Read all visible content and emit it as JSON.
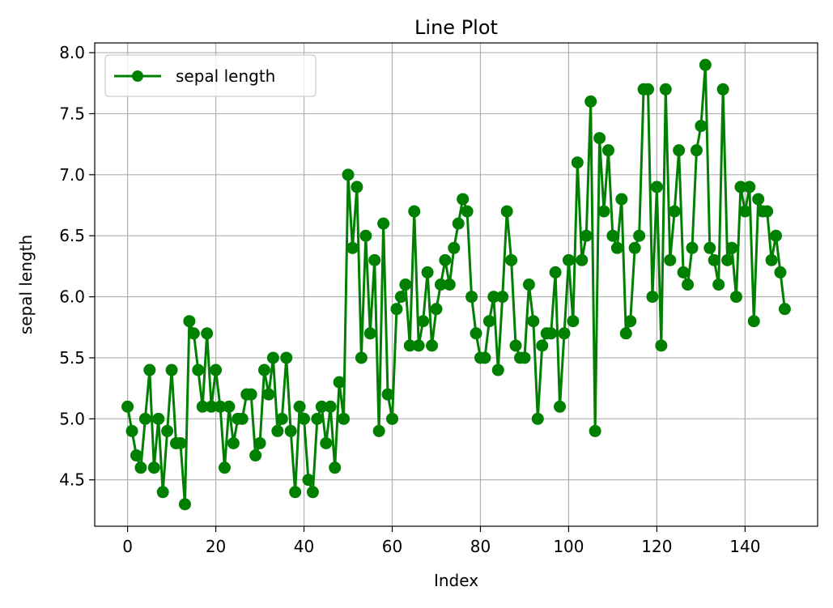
{
  "chart_data": {
    "type": "line",
    "title": "Line Plot",
    "xlabel": "Index",
    "ylabel": "sepal length",
    "xlim": [
      -7.45,
      156.45
    ],
    "ylim": [
      4.12,
      8.08
    ],
    "xticks": [
      0,
      20,
      40,
      60,
      80,
      100,
      120,
      140
    ],
    "yticks": [
      4.5,
      5.0,
      5.5,
      6.0,
      6.5,
      7.0,
      7.5,
      8.0
    ],
    "ytick_labels": [
      "4.5",
      "5.0",
      "5.5",
      "6.0",
      "6.5",
      "7.0",
      "7.5",
      "8.0"
    ],
    "grid": true,
    "legend": {
      "position": "upper-left"
    },
    "series": [
      {
        "name": "sepal length",
        "color": "#008000",
        "marker": "circle",
        "values": [
          5.1,
          4.9,
          4.7,
          4.6,
          5.0,
          5.4,
          4.6,
          5.0,
          4.4,
          4.9,
          5.4,
          4.8,
          4.8,
          4.3,
          5.8,
          5.7,
          5.4,
          5.1,
          5.7,
          5.1,
          5.4,
          5.1,
          4.6,
          5.1,
          4.8,
          5.0,
          5.0,
          5.2,
          5.2,
          4.7,
          4.8,
          5.4,
          5.2,
          5.5,
          4.9,
          5.0,
          5.5,
          4.9,
          4.4,
          5.1,
          5.0,
          4.5,
          4.4,
          5.0,
          5.1,
          4.8,
          5.1,
          4.6,
          5.3,
          5.0,
          7.0,
          6.4,
          6.9,
          5.5,
          6.5,
          5.7,
          6.3,
          4.9,
          6.6,
          5.2,
          5.0,
          5.9,
          6.0,
          6.1,
          5.6,
          6.7,
          5.6,
          5.8,
          6.2,
          5.6,
          5.9,
          6.1,
          6.3,
          6.1,
          6.4,
          6.6,
          6.8,
          6.7,
          6.0,
          5.7,
          5.5,
          5.5,
          5.8,
          6.0,
          5.4,
          6.0,
          6.7,
          6.3,
          5.6,
          5.5,
          5.5,
          6.1,
          5.8,
          5.0,
          5.6,
          5.7,
          5.7,
          6.2,
          5.1,
          5.7,
          6.3,
          5.8,
          7.1,
          6.3,
          6.5,
          7.6,
          4.9,
          7.3,
          6.7,
          7.2,
          6.5,
          6.4,
          6.8,
          5.7,
          5.8,
          6.4,
          6.5,
          7.7,
          7.7,
          6.0,
          6.9,
          5.6,
          7.7,
          6.3,
          6.7,
          7.2,
          6.2,
          6.1,
          6.4,
          7.2,
          7.4,
          7.9,
          6.4,
          6.3,
          6.1,
          7.7,
          6.3,
          6.4,
          6.0,
          6.9,
          6.7,
          6.9,
          5.8,
          6.8,
          6.7,
          6.7,
          6.3,
          6.5,
          6.2,
          5.9
        ]
      }
    ]
  }
}
